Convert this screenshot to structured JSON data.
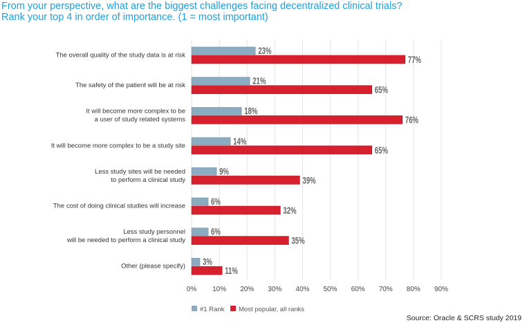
{
  "title_line1": "From your perspective, what are the biggest challenges facing decentralized clinical trials?",
  "title_line2": "Rank your top 4 in order of importance. (1 = most important)",
  "source": "Source: Oracle & SCRS study 2019",
  "colors": {
    "title": "#1ea0dc",
    "rank1": "#8aabc0",
    "all_ranks": "#d7202e"
  },
  "chart_data": {
    "type": "bar",
    "orientation": "horizontal",
    "categories": [
      [
        "The overall quality of the study data is at risk"
      ],
      [
        "The safety of the patient will be at risk"
      ],
      [
        "It will become more complex to be",
        "a user of study related systems"
      ],
      [
        "It will become more complex to be a study site"
      ],
      [
        "Less study sites will be needed",
        "to perform a clinical study"
      ],
      [
        "The cost of doing clinical studies will increase"
      ],
      [
        "Less study personnel",
        "will be needed to perform a clinical study"
      ],
      [
        "Other (please specify)"
      ]
    ],
    "series": [
      {
        "name": "#1 Rank",
        "values": [
          23,
          21,
          18,
          14,
          9,
          6,
          6,
          3
        ]
      },
      {
        "name": "Most popular, all ranks",
        "values": [
          77,
          65,
          76,
          65,
          39,
          32,
          35,
          11
        ]
      }
    ],
    "xlim": [
      0,
      90
    ],
    "xticks": [
      "0%",
      "10%",
      "20%",
      "30%",
      "40%",
      "50%",
      "60%",
      "70%",
      "80%",
      "90%"
    ],
    "grid": true,
    "legend": "bottom-left"
  }
}
